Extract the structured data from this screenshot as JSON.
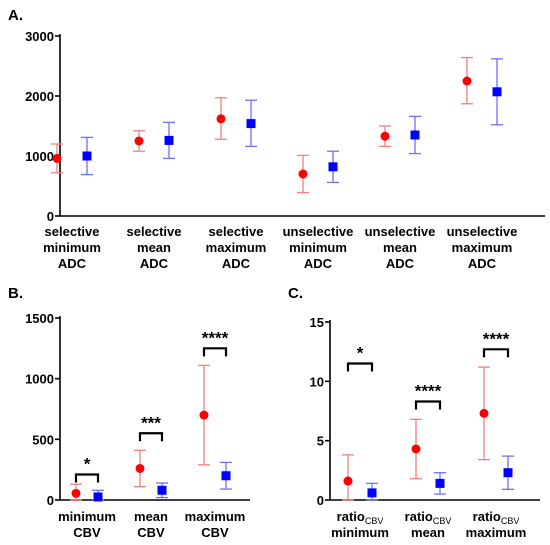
{
  "colors": {
    "group1": "#ff0000",
    "group2": "#0000ff",
    "error1": "#f08080",
    "error2": "#7070ff"
  },
  "chart_data": [
    {
      "id": "A",
      "panel_label": "A.",
      "type": "scatter",
      "ylim": [
        0,
        3000
      ],
      "yticks": [
        0,
        1000,
        2000,
        3000
      ],
      "categories": [
        [
          "selective",
          "minimum",
          "ADC"
        ],
        [
          "selective",
          "mean",
          "ADC"
        ],
        [
          "selective",
          "maximum",
          "ADC"
        ],
        [
          "unselective",
          "minimum",
          "ADC"
        ],
        [
          "unselective",
          "mean",
          "ADC"
        ],
        [
          "unselective",
          "maximum",
          "ADC"
        ]
      ],
      "series": [
        {
          "marker": "circle",
          "values": [
            960,
            1250,
            1620,
            700,
            1330,
            2250
          ],
          "lower": [
            720,
            1080,
            1280,
            390,
            1160,
            1870
          ],
          "upper": [
            1200,
            1420,
            1970,
            1010,
            1500,
            2640
          ]
        },
        {
          "marker": "square",
          "values": [
            1000,
            1260,
            1540,
            820,
            1350,
            2070
          ],
          "lower": [
            690,
            960,
            1160,
            560,
            1040,
            1520
          ],
          "upper": [
            1310,
            1560,
            1930,
            1080,
            1660,
            2620
          ]
        }
      ],
      "significance": []
    },
    {
      "id": "B",
      "panel_label": "B.",
      "type": "scatter",
      "ylim": [
        0,
        1500
      ],
      "yticks": [
        0,
        500,
        1000,
        1500
      ],
      "categories": [
        [
          "minimum",
          "CBV"
        ],
        [
          "mean",
          "CBV"
        ],
        [
          "maximum",
          "CBV"
        ]
      ],
      "series": [
        {
          "marker": "circle",
          "values": [
            55,
            260,
            700
          ],
          "lower": [
            0,
            110,
            290
          ],
          "upper": [
            130,
            410,
            1110
          ]
        },
        {
          "marker": "square",
          "values": [
            25,
            80,
            200
          ],
          "lower": [
            0,
            20,
            90
          ],
          "upper": [
            80,
            140,
            310
          ]
        }
      ],
      "significance": [
        {
          "category": 0,
          "text": "*",
          "y": 210
        },
        {
          "category": 1,
          "text": "***",
          "y": 550
        },
        {
          "category": 2,
          "text": "****",
          "y": 1250
        }
      ]
    },
    {
      "id": "C",
      "panel_label": "C.",
      "type": "scatter",
      "ylim": [
        0,
        15
      ],
      "yticks": [
        0,
        5,
        10,
        15
      ],
      "categories": [
        {
          "main": "ratio",
          "sub": "CBV",
          "line2": "minimum"
        },
        {
          "main": "ratio",
          "sub": "CBV",
          "line2": "mean"
        },
        {
          "main": "ratio",
          "sub": "CBV",
          "line2": "maximum"
        }
      ],
      "series": [
        {
          "marker": "circle",
          "values": [
            1.6,
            4.3,
            7.3
          ],
          "lower": [
            0,
            1.8,
            3.4
          ],
          "upper": [
            3.8,
            6.8,
            11.2
          ]
        },
        {
          "marker": "square",
          "values": [
            0.6,
            1.4,
            2.3
          ],
          "lower": [
            0,
            0.5,
            0.9
          ],
          "upper": [
            1.4,
            2.3,
            3.7
          ]
        }
      ],
      "significance": [
        {
          "category": 0,
          "text": "*",
          "y": 11.5
        },
        {
          "category": 1,
          "text": "****",
          "y": 8.3
        },
        {
          "category": 2,
          "text": "****",
          "y": 12.7
        }
      ]
    }
  ]
}
